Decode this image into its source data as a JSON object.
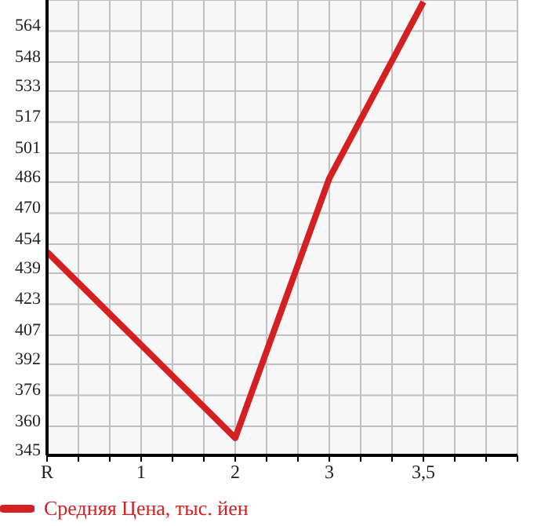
{
  "chart_data": {
    "type": "line",
    "categories": [
      "R",
      "1",
      "2",
      "3",
      "3,5",
      null
    ],
    "series": [
      {
        "name": "Средняя Цена, тыс. йен",
        "color": "#d42020",
        "values": [
          450,
          null,
          354,
          488,
          579,
          null
        ]
      }
    ],
    "ylim": [
      345,
      580
    ],
    "yticks": [
      345,
      360,
      376,
      392,
      407,
      423,
      439,
      454,
      470,
      486,
      501,
      517,
      533,
      548,
      564
    ],
    "grid": true,
    "legend": "bottom",
    "marker": "none",
    "line_style": "solid"
  }
}
